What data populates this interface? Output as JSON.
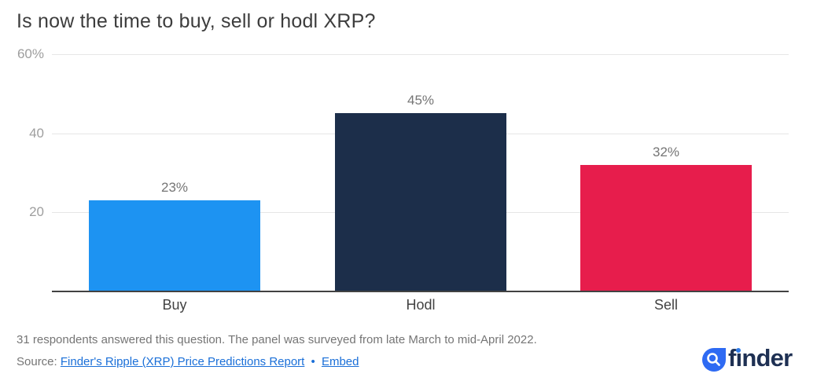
{
  "header": {
    "title": "Is now the time to buy, sell or hodl XRP?"
  },
  "chart_data": {
    "type": "bar",
    "title": "Is now the time to buy, sell or hodl XRP?",
    "categories": [
      "Buy",
      "Hodl",
      "Sell"
    ],
    "values": [
      23,
      45,
      32
    ],
    "value_labels": [
      "23%",
      "45%",
      "32%"
    ],
    "bar_colors": [
      "#1d93f2",
      "#1c2e4a",
      "#e71d4c"
    ],
    "xlabel": "",
    "ylabel": "",
    "ylim": [
      0,
      60
    ],
    "yticks": [
      {
        "value": 20,
        "label": "20"
      },
      {
        "value": 40,
        "label": "40"
      },
      {
        "value": 60,
        "label": "60%"
      }
    ],
    "grid": "horizontal-light",
    "legend": "none"
  },
  "footer": {
    "note": "31 respondents answered this question. The panel was surveyed from late March to mid-April 2022.",
    "source_label": "Source:",
    "source_link": "Finder's Ripple (XRP) Price Predictions Report",
    "separator": "•",
    "embed_label": "Embed"
  },
  "logo": {
    "name": "finder",
    "f": "f",
    "i": "ı",
    "rest": "nder"
  },
  "colors": {
    "buy_bar": "#1d93f2",
    "hodl_bar": "#1c2e4a",
    "sell_bar": "#e71d4c",
    "gridline": "#e6e6e6",
    "axis": "#424242",
    "ytick_text": "#9e9e9e",
    "value_text": "#757575",
    "category_text": "#424242",
    "title_text": "#3d3d3d",
    "footnote_text": "#757575",
    "link": "#1a6fd8",
    "logo_icon": "#2e6af3",
    "logo_text": "#1e3053"
  }
}
